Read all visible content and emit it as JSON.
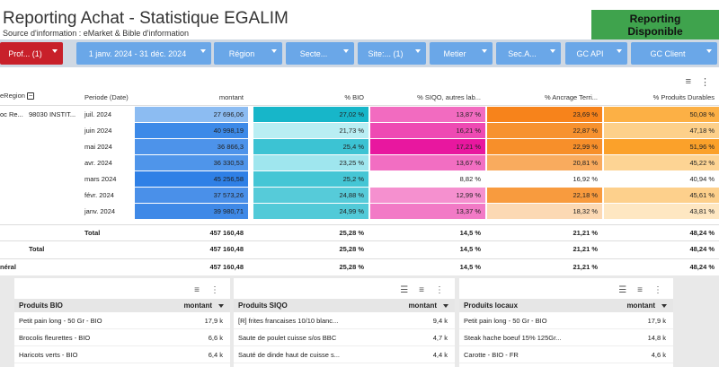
{
  "header": {
    "title": "Reporting Achat - Statistique EGALIM",
    "subtitle": "Source d'information : eMarket & Bible d'information",
    "badge_line1": "Reporting",
    "badge_line2": "Disponible",
    "badge_color": "#3fa34d"
  },
  "filters": [
    {
      "label": "Prof...",
      "count": "(1)",
      "color": "#c8202a"
    },
    {
      "label": "1 janv. 2024 - 31 déc. 2024",
      "count": ""
    },
    {
      "label": "Région",
      "count": ""
    },
    {
      "label": "Secte...",
      "count": ""
    },
    {
      "label": "Site:...",
      "count": "(1)"
    },
    {
      "label": "Metier",
      "count": ""
    },
    {
      "label": "Sec.A...",
      "count": ""
    },
    {
      "label": "GC API",
      "count": ""
    },
    {
      "label": "GC Client",
      "count": ""
    }
  ],
  "table": {
    "headers": {
      "region": "eRegion",
      "periode": "Periode (Date)",
      "montant": "montant",
      "bio": "% BIO",
      "siqo": "% SIQO, autres lab...",
      "ancrage": "% Ancrage Terri...",
      "durables": "% Produits Durables"
    },
    "group_label_1": "oc Re...",
    "group_label_2": "98030 INSTIT...",
    "rows": [
      {
        "periode": "juil. 2024",
        "montant": "27 696,06",
        "bio": "27,02 %",
        "siqo": "13,87 %",
        "ancrage": "23,69 %",
        "durables": "50,08 %"
      },
      {
        "periode": "juin 2024",
        "montant": "40 998,19",
        "bio": "21,73 %",
        "siqo": "16,21 %",
        "ancrage": "22,87 %",
        "durables": "47,18 %"
      },
      {
        "periode": "mai 2024",
        "montant": "36 866,3",
        "bio": "25,4 %",
        "siqo": "17,21 %",
        "ancrage": "22,99 %",
        "durables": "51,96 %"
      },
      {
        "periode": "avr. 2024",
        "montant": "36 330,53",
        "bio": "23,25 %",
        "siqo": "13,67 %",
        "ancrage": "20,81 %",
        "durables": "45,22 %"
      },
      {
        "periode": "mars 2024",
        "montant": "45 256,58",
        "bio": "25,2 %",
        "siqo": "8,82 %",
        "ancrage": "16,92 %",
        "durables": "40,94 %"
      },
      {
        "periode": "févr. 2024",
        "montant": "37 573,26",
        "bio": "24,88 %",
        "siqo": "12,99 %",
        "ancrage": "22,18 %",
        "durables": "45,61 %"
      },
      {
        "periode": "janv. 2024",
        "montant": "39 980,71",
        "bio": "24,99 %",
        "siqo": "13,37 %",
        "ancrage": "18,32 %",
        "durables": "43,81 %"
      }
    ],
    "total_rows": [
      {
        "label": "Total",
        "montant": "457 160,48",
        "bio": "25,28 %",
        "siqo": "14,5 %",
        "ancrage": "21,21 %",
        "durables": "48,24 %"
      },
      {
        "label": "Total",
        "montant": "457 160,48",
        "bio": "25,28 %",
        "siqo": "14,5 %",
        "ancrage": "21,21 %",
        "durables": "48,24 %"
      },
      {
        "label": "néral",
        "montant": "457 160,48",
        "bio": "25,28 %",
        "siqo": "14,5 %",
        "ancrage": "21,21 %",
        "durables": "48,24 %"
      }
    ]
  },
  "cards": [
    {
      "title": "Produits BIO",
      "col": "montant",
      "rows": [
        {
          "name": "Petit pain long - 50 Gr - BIO",
          "value": "17,9 k"
        },
        {
          "name": "Brocolis fleurettes - BIO",
          "value": "6,6 k"
        },
        {
          "name": "Haricots verts - BIO",
          "value": "6,4 k"
        }
      ]
    },
    {
      "title": "Produits SIQO",
      "col": "montant",
      "rows": [
        {
          "name": "[R] frites francaises 10/10 blanc...",
          "value": "9,4 k"
        },
        {
          "name": "Saute de poulet cuisse s/os BBC",
          "value": "4,7 k"
        },
        {
          "name": "Sauté de dinde haut de cuisse s...",
          "value": "4,4 k"
        }
      ]
    },
    {
      "title": "Produits locaux",
      "col": "montant",
      "rows": [
        {
          "name": "Petit pain long - 50 Gr - BIO",
          "value": "17,9 k"
        },
        {
          "name": "Steak hache boeuf 15% 125Gr...",
          "value": "14,8 k"
        },
        {
          "name": "Carotte - BIO - FR",
          "value": "4,6 k"
        }
      ]
    }
  ]
}
